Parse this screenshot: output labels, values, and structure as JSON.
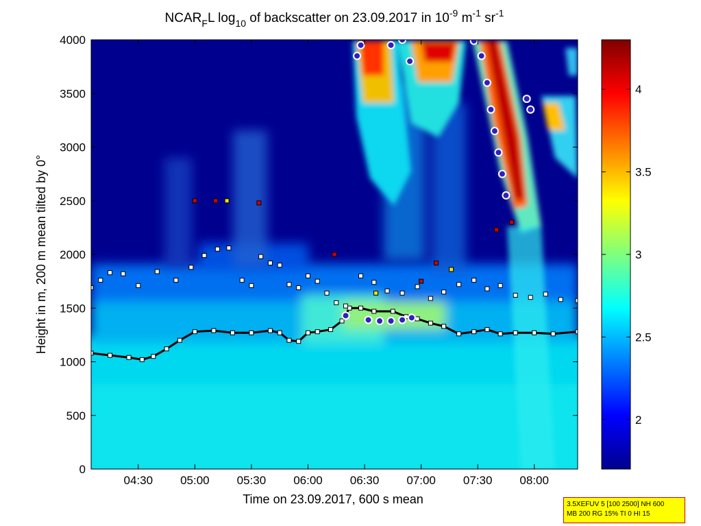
{
  "chart_data": {
    "type": "heatmap",
    "title": {
      "prefix": "NCAR",
      "sub_f": "F",
      "mid1": "L log",
      "sub_10": "10",
      "mid2": " of backscatter on 23.09.2017 in 10",
      "sup_m9": "-9",
      "mid3": " m",
      "sup_m1a": "-1",
      "mid4": " sr",
      "sup_m1b": "-1"
    },
    "xlabel": "Time on 23.09.2017, 600 s mean",
    "ylabel": "Height in m, 200 m mean tilted by 0°",
    "x_ticks": [
      "04:30",
      "05:00",
      "05:30",
      "06:00",
      "06:30",
      "07:00",
      "07:30",
      "08:00"
    ],
    "x_tick_minutes": [
      270,
      300,
      330,
      360,
      390,
      420,
      450,
      480
    ],
    "xlim_minutes": [
      245,
      503
    ],
    "y_ticks": [
      "0",
      "500",
      "1000",
      "1500",
      "2000",
      "2500",
      "3000",
      "3500",
      "4000"
    ],
    "ylim": [
      0,
      4000
    ],
    "colorbar": {
      "ticks": [
        "2",
        "2.5",
        "3",
        "3.5",
        "4"
      ],
      "tick_values": [
        2,
        2.5,
        3,
        3.5,
        4
      ],
      "range": [
        1.7,
        4.3
      ],
      "colormap": "jet"
    },
    "colors": {
      "frame": "#000000",
      "background": "#ffffff",
      "low": "#00008f",
      "high": "#800000"
    },
    "layers": {
      "mixing_layer_height_m": [
        [
          245,
          1080
        ],
        [
          255,
          1060
        ],
        [
          265,
          1040
        ],
        [
          272,
          1020
        ],
        [
          278,
          1050
        ],
        [
          285,
          1120
        ],
        [
          292,
          1200
        ],
        [
          300,
          1280
        ],
        [
          310,
          1290
        ],
        [
          320,
          1270
        ],
        [
          330,
          1270
        ],
        [
          340,
          1290
        ],
        [
          345,
          1270
        ],
        [
          350,
          1200
        ],
        [
          355,
          1190
        ],
        [
          360,
          1270
        ],
        [
          365,
          1280
        ],
        [
          372,
          1300
        ],
        [
          378,
          1380
        ],
        [
          382,
          1500
        ],
        [
          388,
          1500
        ],
        [
          395,
          1470
        ],
        [
          405,
          1470
        ],
        [
          412,
          1420
        ],
        [
          418,
          1400
        ],
        [
          425,
          1360
        ],
        [
          432,
          1330
        ],
        [
          440,
          1260
        ],
        [
          448,
          1280
        ],
        [
          455,
          1300
        ],
        [
          462,
          1260
        ],
        [
          470,
          1270
        ],
        [
          480,
          1270
        ],
        [
          490,
          1260
        ],
        [
          503,
          1280
        ]
      ],
      "upper_layer_height_m": [
        [
          245,
          1690
        ],
        [
          250,
          1760
        ],
        [
          255,
          1830
        ],
        [
          262,
          1820
        ],
        [
          270,
          1710
        ],
        [
          280,
          1840
        ],
        [
          290,
          1760
        ],
        [
          298,
          1880
        ],
        [
          305,
          1990
        ],
        [
          312,
          2050
        ],
        [
          318,
          2060
        ],
        [
          325,
          1760
        ],
        [
          330,
          1710
        ],
        [
          335,
          1980
        ],
        [
          340,
          1920
        ],
        [
          345,
          1900
        ],
        [
          350,
          1720
        ],
        [
          355,
          1690
        ],
        [
          360,
          1800
        ],
        [
          365,
          1750
        ],
        [
          370,
          1640
        ],
        [
          375,
          1550
        ],
        [
          380,
          1520
        ],
        [
          388,
          1800
        ],
        [
          395,
          1740
        ],
        [
          402,
          1660
        ],
        [
          410,
          1640
        ],
        [
          418,
          1700
        ],
        [
          425,
          1590
        ],
        [
          432,
          1650
        ],
        [
          440,
          1720
        ],
        [
          448,
          1760
        ],
        [
          455,
          1680
        ],
        [
          462,
          1710
        ],
        [
          470,
          1620
        ],
        [
          478,
          1600
        ],
        [
          486,
          1630
        ],
        [
          494,
          1580
        ],
        [
          503,
          1570
        ]
      ],
      "cloud_base_height_m": [
        [
          380,
          1430
        ],
        [
          392,
          1390
        ],
        [
          398,
          1380
        ],
        [
          404,
          1380
        ],
        [
          410,
          1390
        ],
        [
          415,
          1410
        ],
        [
          386,
          3850
        ],
        [
          388,
          3950
        ],
        [
          404,
          3950
        ],
        [
          410,
          4000
        ],
        [
          414,
          3800
        ],
        [
          448,
          3990
        ],
        [
          452,
          3850
        ],
        [
          455,
          3600
        ],
        [
          457,
          3350
        ],
        [
          459,
          3150
        ],
        [
          461,
          2950
        ],
        [
          463,
          2750
        ],
        [
          465,
          2550
        ],
        [
          476,
          3450
        ],
        [
          478,
          3350
        ]
      ],
      "aerosol_layer_markers_m": [
        [
          300,
          2500
        ],
        [
          311,
          2500
        ],
        [
          317,
          2500
        ],
        [
          334,
          2480
        ],
        [
          374,
          2000
        ],
        [
          396,
          1640
        ],
        [
          420,
          1750
        ],
        [
          428,
          1920
        ],
        [
          436,
          1860
        ],
        [
          460,
          2230
        ],
        [
          468,
          2300
        ]
      ]
    }
  },
  "info_box": {
    "line1": "3.5XEFUV 5 [100 2500] NH 600",
    "line2": "MB 200 RG 15% TI 0 HI 15"
  }
}
